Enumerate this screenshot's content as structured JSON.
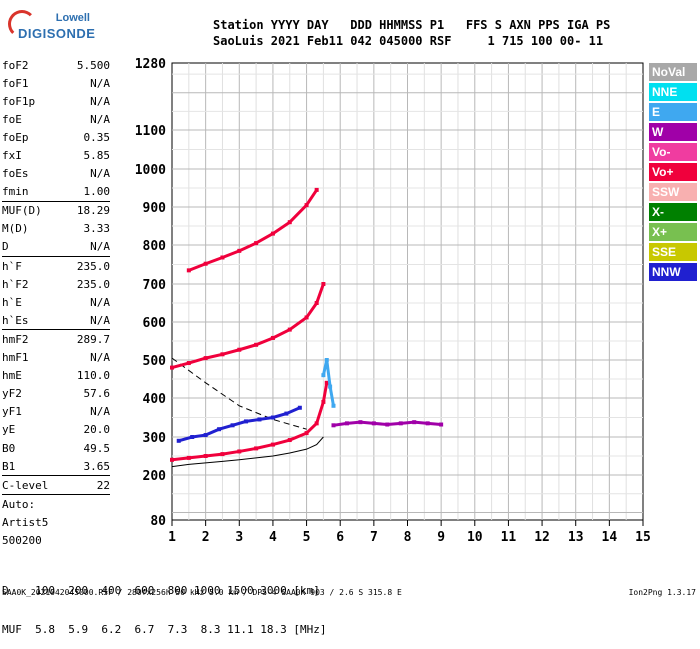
{
  "logo": {
    "line1": "Lowell",
    "line2": "DIGISONDE"
  },
  "header": {
    "line1": "Station YYYY DAY   DDD HHMMSS P1   FFS S AXN PPS IGA PS",
    "line2": "SaoLuis 2021 Feb11 042 045000 RSF     1 715 100 00- 11"
  },
  "params": [
    [
      {
        "k": "foF2",
        "v": "5.500"
      },
      {
        "k": "foF1",
        "v": "N/A"
      },
      {
        "k": "foF1p",
        "v": "N/A"
      },
      {
        "k": "foE",
        "v": "N/A"
      },
      {
        "k": "foEp",
        "v": "0.35"
      },
      {
        "k": "fxI",
        "v": "5.85"
      },
      {
        "k": "foEs",
        "v": "N/A"
      },
      {
        "k": "fmin",
        "v": "1.00"
      }
    ],
    [
      {
        "k": "MUF(D)",
        "v": "18.29"
      },
      {
        "k": "M(D)",
        "v": "3.33"
      },
      {
        "k": "D",
        "v": "N/A"
      }
    ],
    [
      {
        "k": "h`F",
        "v": "235.0"
      },
      {
        "k": "h`F2",
        "v": "235.0"
      },
      {
        "k": "h`E",
        "v": "N/A"
      },
      {
        "k": "h`Es",
        "v": "N/A"
      }
    ],
    [
      {
        "k": "hmF2",
        "v": "289.7"
      },
      {
        "k": "hmF1",
        "v": "N/A"
      },
      {
        "k": "hmE",
        "v": "110.0"
      },
      {
        "k": "yF2",
        "v": "57.6"
      },
      {
        "k": "yF1",
        "v": "N/A"
      },
      {
        "k": "yE",
        "v": "20.0"
      },
      {
        "k": "B0",
        "v": "49.5"
      },
      {
        "k": "B1",
        "v": "3.65"
      }
    ],
    [
      {
        "k": "C-level",
        "v": "22"
      }
    ],
    [
      {
        "k": "Auto:",
        "v": ""
      },
      {
        "k": "Artist5",
        "v": ""
      },
      {
        "k": "500200",
        "v": ""
      }
    ]
  ],
  "legend": [
    {
      "label": "NoVal",
      "color": "#a8a8a8"
    },
    {
      "label": "NNE",
      "color": "#00e0f0"
    },
    {
      "label": "E",
      "color": "#3fa8f0"
    },
    {
      "label": "W",
      "color": "#a000a8"
    },
    {
      "label": "Vo-",
      "color": "#f03ca0"
    },
    {
      "label": "Vo+",
      "color": "#f0003c"
    },
    {
      "label": "SSW",
      "color": "#f8b0b0"
    },
    {
      "label": "X-",
      "color": "#008000"
    },
    {
      "label": "X+",
      "color": "#78c050"
    },
    {
      "label": "SSE",
      "color": "#c8c800"
    },
    {
      "label": "NNW",
      "color": "#2020d0"
    }
  ],
  "bottom": {
    "d_line": "D    100  200  400  600  800 1000 1500 3000 [km]",
    "muf_line": "MUF  5.8  5.9  6.2  6.7  7.3  8.3 11.1 18.3 [MHz]"
  },
  "footer": "SAA0K_2021042045000.RSF / 280fx256h 50 kHz 5.0 km / DPS-4 SAA0K 903 / 2.6 S 315.8 E",
  "version": "Ion2Png 1.3.17",
  "chart_data": {
    "type": "scatter",
    "x_ticks": [
      1,
      2,
      3,
      4,
      5,
      6,
      7,
      8,
      9,
      10,
      11,
      12,
      13,
      14,
      15
    ],
    "y_ticks": [
      80,
      200,
      300,
      400,
      500,
      600,
      700,
      800,
      900,
      1000,
      1100,
      1280
    ],
    "xlim": [
      1,
      15
    ],
    "ylim": [
      80,
      1280
    ],
    "grid": true,
    "series": [
      {
        "color": "#f0003c",
        "points": [
          [
            1.0,
            240
          ],
          [
            1.5,
            245
          ],
          [
            2.0,
            250
          ],
          [
            2.5,
            255
          ],
          [
            3.0,
            262
          ],
          [
            3.5,
            270
          ],
          [
            4.0,
            280
          ],
          [
            4.5,
            292
          ],
          [
            5.0,
            310
          ],
          [
            5.3,
            335
          ],
          [
            5.5,
            390
          ],
          [
            5.6,
            440
          ]
        ]
      },
      {
        "color": "#f0003c",
        "points": [
          [
            1.0,
            480
          ],
          [
            1.5,
            492
          ],
          [
            2.0,
            505
          ],
          [
            2.5,
            515
          ],
          [
            3.0,
            527
          ],
          [
            3.5,
            540
          ],
          [
            4.0,
            558
          ],
          [
            4.5,
            580
          ],
          [
            5.0,
            612
          ],
          [
            5.3,
            650
          ],
          [
            5.5,
            700
          ]
        ]
      },
      {
        "color": "#f0003c",
        "points": [
          [
            1.5,
            735
          ],
          [
            2.0,
            752
          ],
          [
            2.5,
            768
          ],
          [
            3.0,
            785
          ],
          [
            3.5,
            805
          ],
          [
            4.0,
            830
          ],
          [
            4.5,
            860
          ],
          [
            5.0,
            905
          ],
          [
            5.3,
            945
          ]
        ]
      },
      {
        "color": "#a000a8",
        "points": [
          [
            5.8,
            330
          ],
          [
            6.2,
            335
          ],
          [
            6.6,
            338
          ],
          [
            7.0,
            335
          ],
          [
            7.4,
            332
          ],
          [
            7.8,
            335
          ],
          [
            8.2,
            338
          ],
          [
            8.6,
            335
          ],
          [
            9.0,
            332
          ]
        ]
      },
      {
        "color": "#2020d0",
        "points": [
          [
            1.2,
            290
          ],
          [
            1.6,
            300
          ],
          [
            2.0,
            305
          ],
          [
            2.4,
            320
          ],
          [
            2.8,
            330
          ],
          [
            3.2,
            340
          ],
          [
            3.6,
            345
          ],
          [
            4.0,
            350
          ],
          [
            4.4,
            360
          ],
          [
            4.8,
            375
          ]
        ]
      },
      {
        "color": "#3fa8f0",
        "points": [
          [
            5.5,
            460
          ],
          [
            5.6,
            500
          ],
          [
            5.7,
            430
          ],
          [
            5.8,
            380
          ]
        ]
      }
    ]
  }
}
